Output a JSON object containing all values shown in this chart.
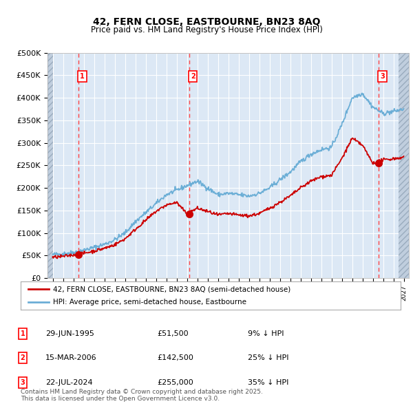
{
  "title_line1": "42, FERN CLOSE, EASTBOURNE, BN23 8AQ",
  "title_line2": "Price paid vs. HM Land Registry's House Price Index (HPI)",
  "ylim": [
    0,
    500000
  ],
  "yticks": [
    0,
    50000,
    100000,
    150000,
    200000,
    250000,
    300000,
    350000,
    400000,
    450000,
    500000
  ],
  "ytick_labels": [
    "£0",
    "£50K",
    "£100K",
    "£150K",
    "£200K",
    "£250K",
    "£300K",
    "£350K",
    "£400K",
    "£450K",
    "£500K"
  ],
  "xlim_start": 1992.5,
  "xlim_end": 2027.5,
  "hpi_color": "#6baed6",
  "price_color": "#cc0000",
  "dashed_line_color": "#ff4444",
  "marker_color": "#cc0000",
  "transaction_dates": [
    1995.495,
    2006.204,
    2024.554
  ],
  "transaction_prices": [
    51500,
    142500,
    255000
  ],
  "transaction_labels": [
    "1",
    "2",
    "3"
  ],
  "legend_label_price": "42, FERN CLOSE, EASTBOURNE, BN23 8AQ (semi-detached house)",
  "legend_label_hpi": "HPI: Average price, semi-detached house, Eastbourne",
  "table_rows": [
    [
      "1",
      "29-JUN-1995",
      "£51,500",
      "9% ↓ HPI"
    ],
    [
      "2",
      "15-MAR-2006",
      "£142,500",
      "25% ↓ HPI"
    ],
    [
      "3",
      "22-JUL-2024",
      "£255,000",
      "35% ↓ HPI"
    ]
  ],
  "footnote": "Contains HM Land Registry data © Crown copyright and database right 2025.\nThis data is licensed under the Open Government Licence v3.0.",
  "plot_bg_color": "#dce8f5",
  "hatch_color": "#c0cede",
  "fig_bg_color": "#ffffff",
  "hpi_anchors_x": [
    1993,
    1994,
    1995,
    1996,
    1997,
    1998,
    1999,
    2000,
    2001,
    2002,
    2003,
    2004,
    2005,
    2006,
    2007,
    2008,
    2009,
    2010,
    2011,
    2012,
    2013,
    2014,
    2015,
    2016,
    2017,
    2018,
    2019,
    2020,
    2021,
    2022,
    2023,
    2024,
    2025,
    2026,
    2027
  ],
  "hpi_anchors_y": [
    52000,
    54000,
    57000,
    62000,
    68000,
    75000,
    85000,
    100000,
    125000,
    145000,
    165000,
    185000,
    195000,
    205000,
    215000,
    200000,
    185000,
    188000,
    185000,
    182000,
    188000,
    200000,
    218000,
    235000,
    258000,
    275000,
    285000,
    290000,
    340000,
    400000,
    410000,
    380000,
    365000,
    370000,
    375000
  ],
  "price_anchors_x": [
    1993,
    1994,
    1995,
    1996,
    1997,
    1998,
    1999,
    2000,
    2001,
    2002,
    2003,
    2004,
    2005,
    2006,
    2007,
    2008,
    2009,
    2010,
    2011,
    2012,
    2013,
    2014,
    2015,
    2016,
    2017,
    2018,
    2019,
    2020,
    2021,
    2022,
    2023,
    2024,
    2025,
    2026,
    2027
  ],
  "price_anchors_y": [
    46000,
    48000,
    51500,
    55000,
    60000,
    66000,
    74000,
    87000,
    108000,
    128000,
    148000,
    162000,
    168000,
    142500,
    155000,
    148000,
    140000,
    143000,
    140000,
    138000,
    143000,
    155000,
    168000,
    182000,
    200000,
    215000,
    225000,
    228000,
    265000,
    310000,
    295000,
    255000,
    262000,
    265000,
    268000
  ]
}
